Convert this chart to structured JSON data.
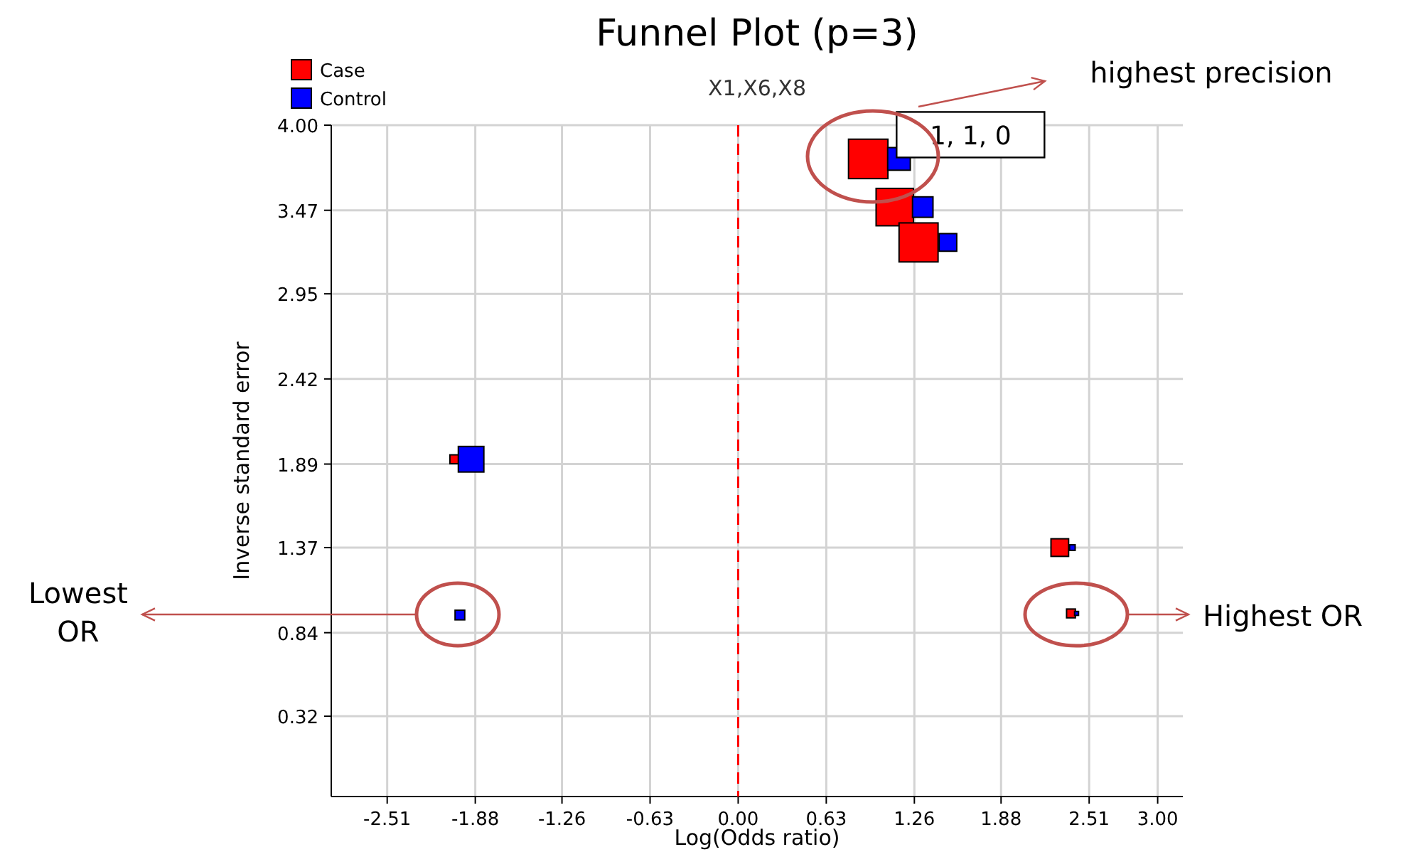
{
  "chart_data": {
    "type": "bubble",
    "title": "Funnel Plot (p=3)",
    "subtitle": "X1,X6,X8",
    "xlabel": "Log(Odds ratio)",
    "ylabel": "Inverse standard error",
    "series": [
      {
        "name": "Case",
        "color": "#ff0000",
        "x": [
          0.93,
          1.12,
          1.29,
          -2.03,
          2.3,
          null,
          2.38
        ],
        "values": [
          3.79,
          3.49,
          3.27,
          1.92,
          1.37,
          null,
          0.96
        ],
        "sizes": [
          1.0,
          0.9,
          0.98,
          0.05,
          0.2,
          null,
          0.05
        ]
      },
      {
        "name": "Control",
        "color": "#0000ff",
        "x": [
          1.15,
          1.32,
          1.5,
          -1.91,
          2.39,
          -1.99,
          2.42
        ],
        "values": [
          3.79,
          3.49,
          3.27,
          1.92,
          1.37,
          0.95,
          0.96
        ],
        "sizes": [
          0.33,
          0.27,
          0.2,
          0.42,
          0.02,
          0.06,
          0.01
        ]
      }
    ],
    "marker": "square",
    "xlim": [
      -2.91,
      3.18
    ],
    "ylim": [
      -0.18,
      4.0
    ],
    "xticks": [
      -2.51,
      -1.88,
      -1.26,
      -0.63,
      {
        "value": 0,
        "label": "0.00"
      },
      0.63,
      1.26,
      1.88,
      2.51,
      {
        "value": 3,
        "label": "3.00"
      }
    ],
    "yticks": [
      0.32,
      0.84,
      1.37,
      1.89,
      2.42,
      2.95,
      3.47,
      {
        "value": 4,
        "label": "4.00"
      }
    ],
    "grid": true,
    "legend": "top left",
    "ref_lines": [
      {
        "axis": "x",
        "value": 0,
        "color": "#ff0000",
        "line_style": "dashed"
      }
    ],
    "annotations": [
      {
        "text": "1, 1, 0",
        "x": 0.95,
        "y": 3.79
      },
      "highest precision",
      "Lowest OR",
      "Highest OR"
    ]
  }
}
